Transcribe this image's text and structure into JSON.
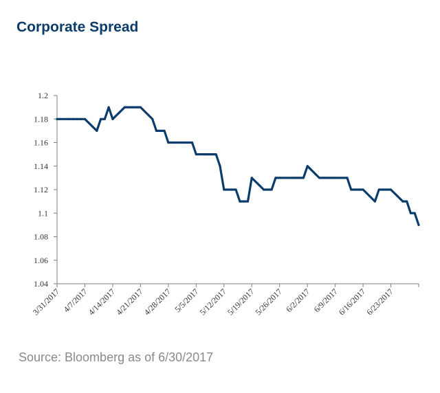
{
  "title": "Corporate Spread",
  "source": "Source: Bloomberg as of 6/30/2017",
  "colors": {
    "title": "#0b3c6b",
    "line": "#0b3c6b",
    "axis": "#7f7f7f",
    "source": "#8a8a8a"
  },
  "chart_data": {
    "type": "line",
    "title": "Corporate Spread",
    "xlabel": "",
    "ylabel": "",
    "ylim": [
      1.04,
      1.2
    ],
    "yticks": [
      "1.04",
      "1.06",
      "1.08",
      "1.1",
      "1.12",
      "1.14",
      "1.16",
      "1.18",
      "1.2"
    ],
    "xticks": [
      "3/31/2017",
      "4/7/2017",
      "4/14/2017",
      "4/21/2017",
      "4/28/2017",
      "5/5/2017",
      "5/12/2017",
      "5/19/2017",
      "5/26/2017",
      "6/2/2017",
      "6/9/2017",
      "6/16/2017",
      "6/23/2017"
    ],
    "xrange": [
      "3/31/2017",
      "6/30/2017"
    ],
    "grid": false,
    "legend": "none",
    "series": [
      {
        "x": [
          "3/31/2017",
          "4/3/2017",
          "4/4/2017",
          "4/5/2017",
          "4/6/2017",
          "4/7/2017",
          "4/10/2017",
          "4/11/2017",
          "4/12/2017",
          "4/13/2017",
          "4/14/2017",
          "4/17/2017",
          "4/18/2017",
          "4/19/2017",
          "4/20/2017",
          "4/21/2017",
          "4/24/2017",
          "4/25/2017",
          "4/26/2017",
          "4/27/2017",
          "4/28/2017",
          "5/1/2017",
          "5/2/2017",
          "5/3/2017",
          "5/4/2017",
          "5/5/2017",
          "5/8/2017",
          "5/9/2017",
          "5/10/2017",
          "5/11/2017",
          "5/12/2017",
          "5/15/2017",
          "5/16/2017",
          "5/17/2017",
          "5/18/2017",
          "5/19/2017",
          "5/22/2017",
          "5/23/2017",
          "5/24/2017",
          "5/25/2017",
          "5/26/2017",
          "5/30/2017",
          "5/31/2017",
          "6/1/2017",
          "6/2/2017",
          "6/5/2017",
          "6/6/2017",
          "6/7/2017",
          "6/8/2017",
          "6/9/2017",
          "6/12/2017",
          "6/13/2017",
          "6/14/2017",
          "6/15/2017",
          "6/16/2017",
          "6/19/2017",
          "6/20/2017",
          "6/21/2017",
          "6/22/2017",
          "6/23/2017",
          "6/26/2017",
          "6/27/2017",
          "6/28/2017",
          "6/29/2017",
          "6/30/2017"
        ],
        "values": [
          1.18,
          1.18,
          1.18,
          1.18,
          1.18,
          1.18,
          1.17,
          1.18,
          1.18,
          1.19,
          1.18,
          1.19,
          1.19,
          1.19,
          1.19,
          1.19,
          1.18,
          1.17,
          1.17,
          1.17,
          1.16,
          1.16,
          1.16,
          1.16,
          1.16,
          1.15,
          1.15,
          1.15,
          1.15,
          1.14,
          1.12,
          1.12,
          1.11,
          1.11,
          1.11,
          1.13,
          1.12,
          1.12,
          1.12,
          1.13,
          1.13,
          1.13,
          1.13,
          1.13,
          1.14,
          1.13,
          1.13,
          1.13,
          1.13,
          1.13,
          1.13,
          1.12,
          1.12,
          1.12,
          1.12,
          1.11,
          1.12,
          1.12,
          1.12,
          1.12,
          1.11,
          1.11,
          1.1,
          1.1,
          1.09
        ]
      }
    ]
  }
}
